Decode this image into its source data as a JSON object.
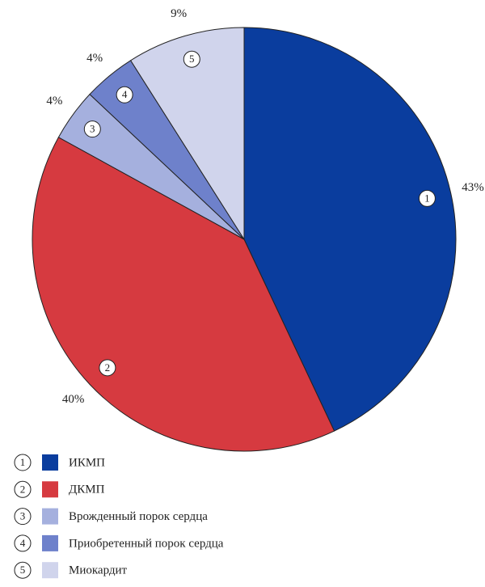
{
  "chart_data": {
    "type": "pie",
    "categories": [
      "ИКМП",
      "ДКМП",
      "Врожденный порок сердца",
      "Приобретенный порок сердца",
      "Миокардит"
    ],
    "values": [
      43,
      40,
      4,
      4,
      9
    ],
    "value_labels": [
      "43%",
      "40%",
      "4%",
      "4%",
      "9%"
    ],
    "numbers": [
      "1",
      "2",
      "3",
      "4",
      "5"
    ],
    "colors": [
      "#0a3d9e",
      "#d63a40",
      "#a5b0de",
      "#6e81cb",
      "#d0d4ec"
    ]
  }
}
